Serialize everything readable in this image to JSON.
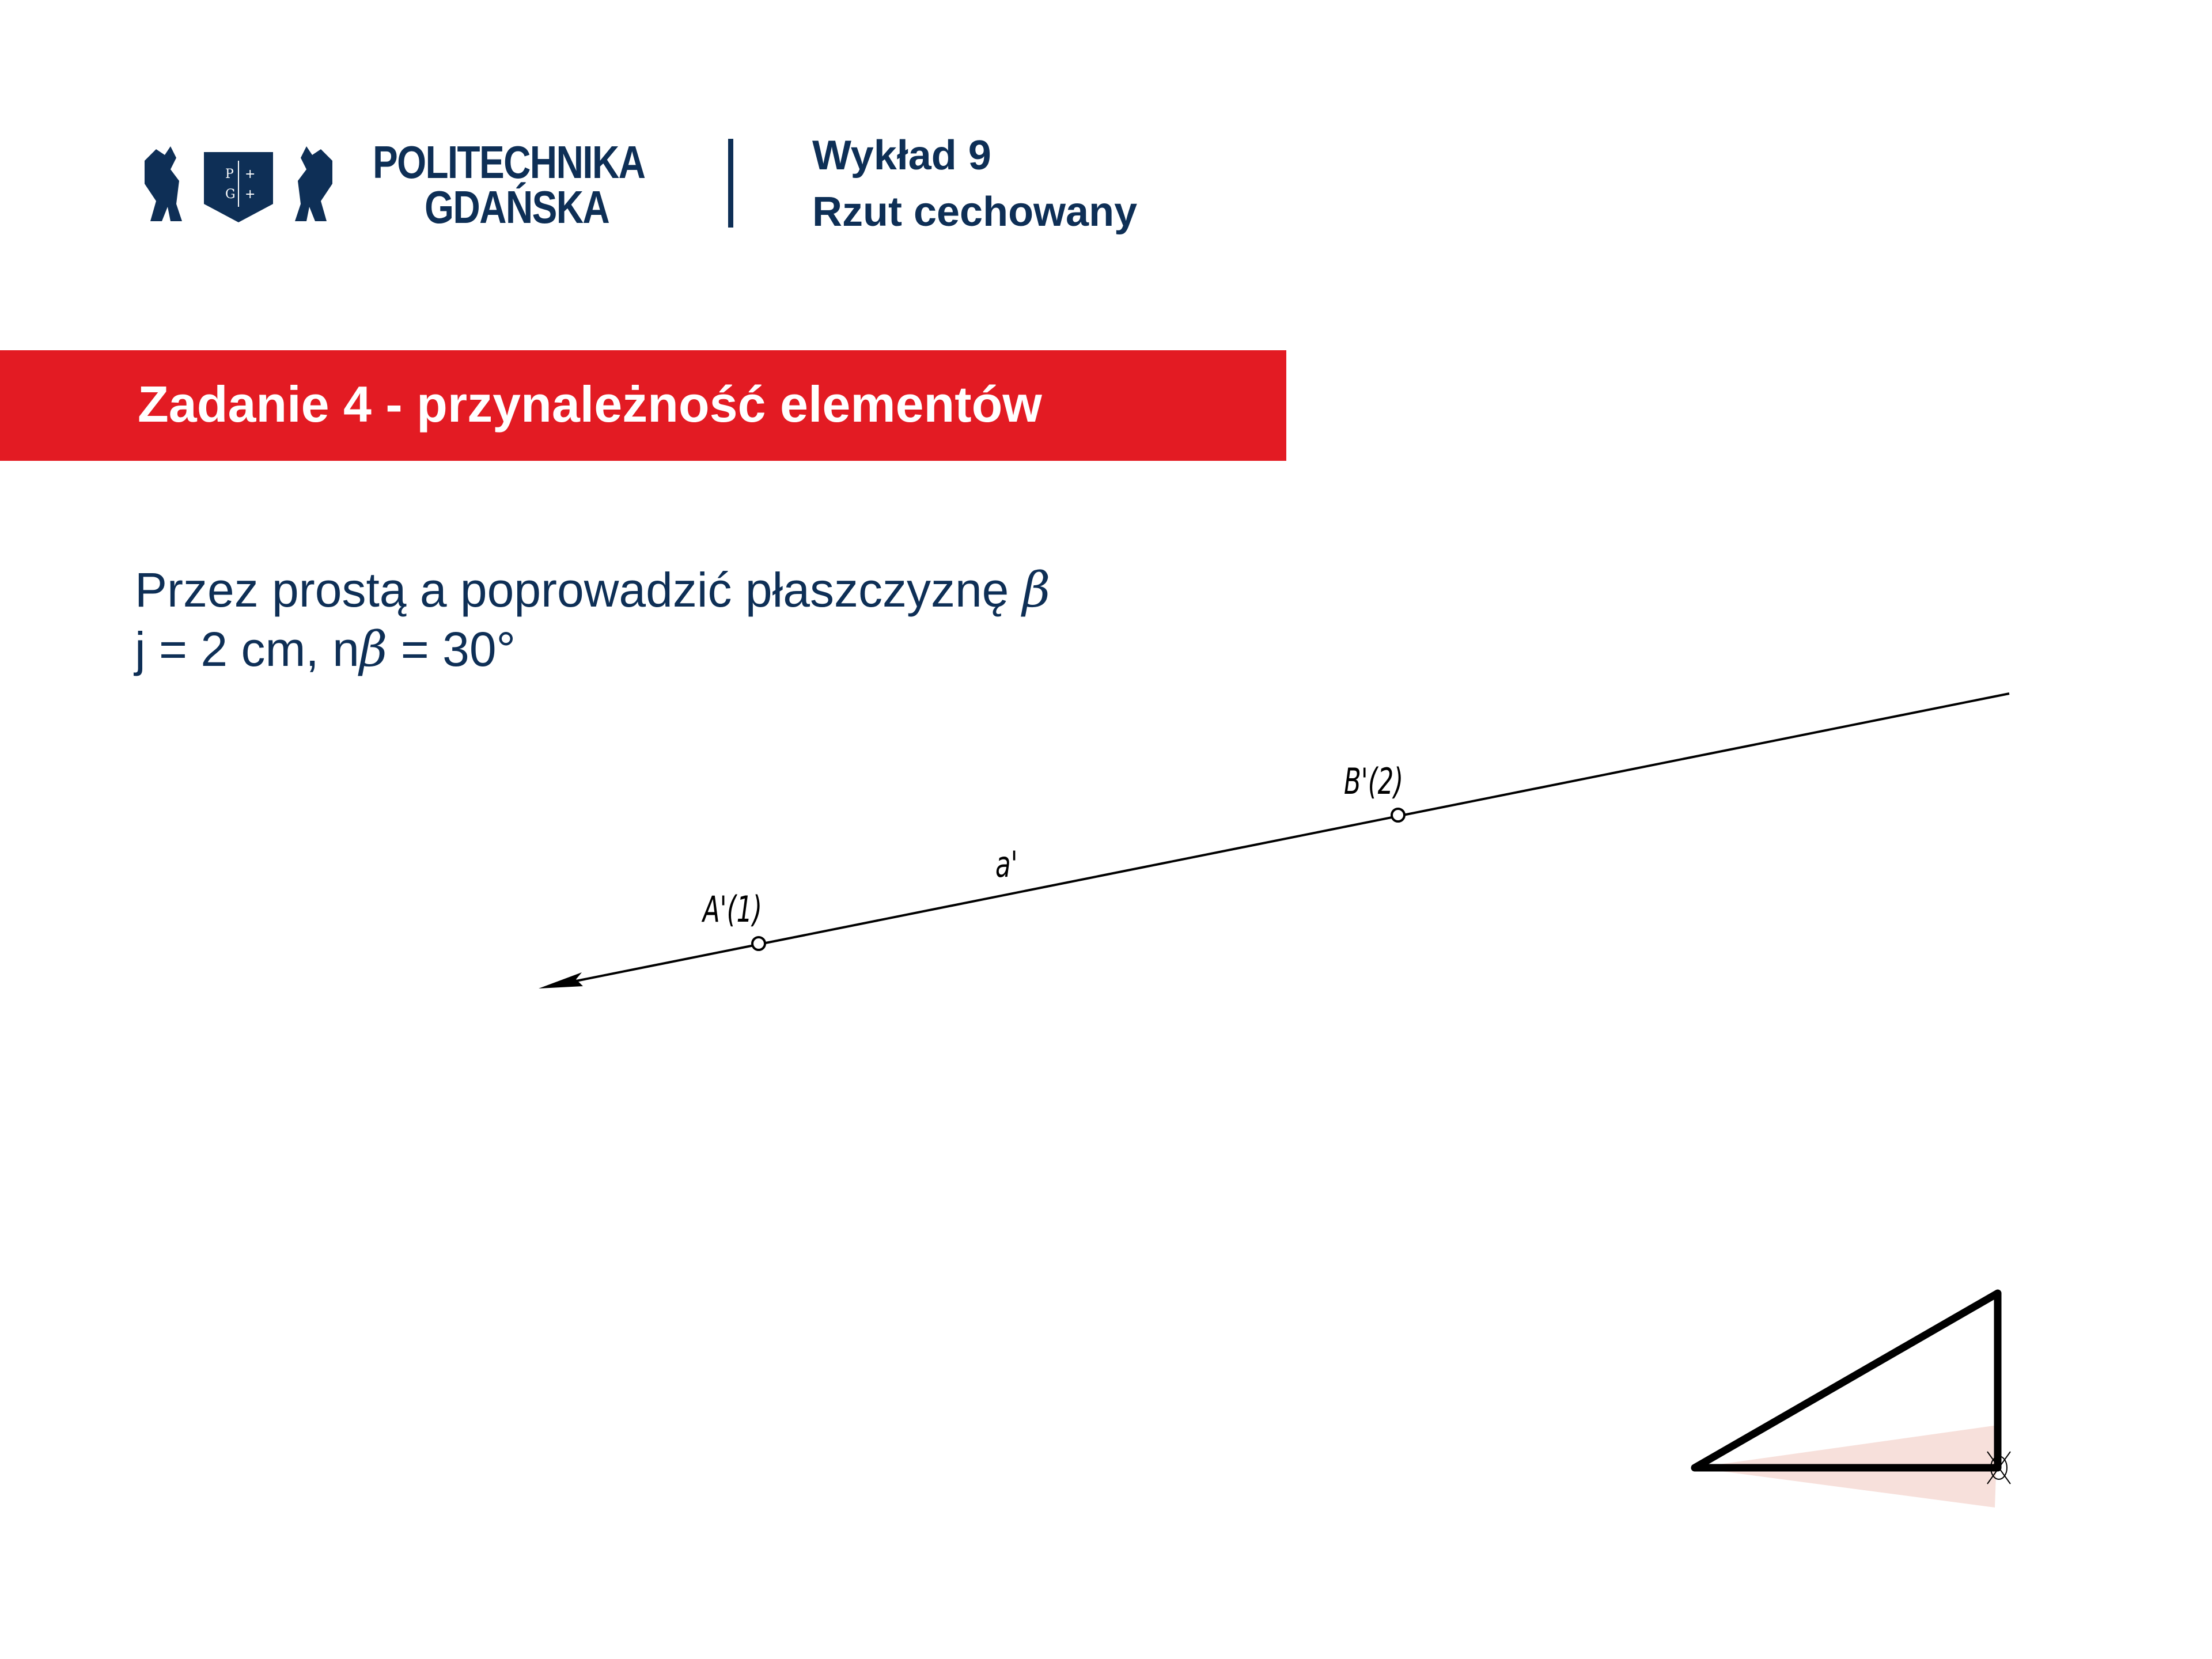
{
  "header": {
    "university_line1": "POLITECHNIKA",
    "university_line2": "GDAŃSKA",
    "logo_shield_letters": "P G",
    "lecture": "Wykład 9",
    "topic": "Rzut cechowany"
  },
  "banner": {
    "title": "Zadanie 4 - przynależność elementów",
    "color": "#e31b23"
  },
  "task": {
    "line1_text": "Przez prostą a poprowadzić płaszczyznę ",
    "line1_symbol": "β",
    "line2_prefix": "j = 2 cm, n",
    "line2_symbol": "β",
    "line2_suffix": " = 30°"
  },
  "drawing": {
    "line_label": "a'",
    "point_a_label": "A'(1)",
    "point_b_label": "B'(2)",
    "wedge_color": "#f7e0db"
  }
}
